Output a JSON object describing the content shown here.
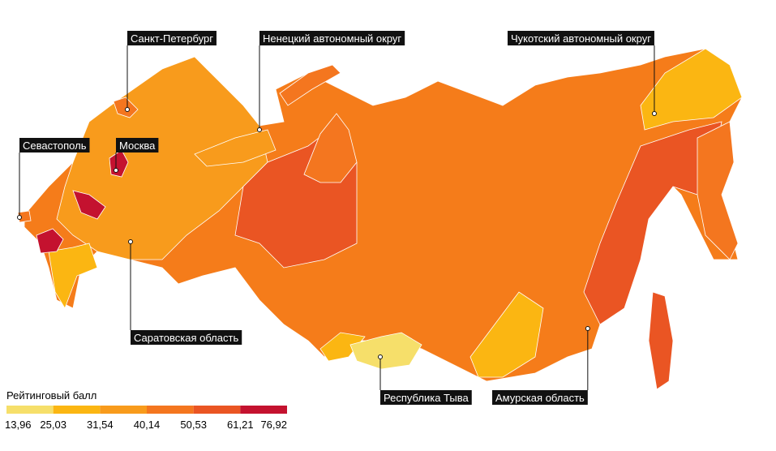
{
  "callouts": [
    {
      "label": "Санкт-Петербург"
    },
    {
      "label": "Ненецкий автономный округ"
    },
    {
      "label": "Чукотский автономный округ"
    },
    {
      "label": "Севастополь"
    },
    {
      "label": "Москва"
    },
    {
      "label": "Саратовская область"
    },
    {
      "label": "Республика Тыва"
    },
    {
      "label": "Амурская область"
    }
  ],
  "legend": {
    "title": "Рейтинговый балл",
    "ticks": [
      {
        "value": 13.96,
        "label": "13,96"
      },
      {
        "value": 25.03,
        "label": "25,03"
      },
      {
        "value": 31.54,
        "label": "31,54"
      },
      {
        "value": 40.14,
        "label": "40,14"
      },
      {
        "value": 50.53,
        "label": "50,53"
      },
      {
        "value": 61.21,
        "label": "61,21"
      },
      {
        "value": 76.92,
        "label": "76,92"
      }
    ],
    "colors": [
      "#f6df6a",
      "#fbb612",
      "#f89b1c",
      "#f4761f",
      "#ea5523",
      "#c4122f"
    ]
  }
}
